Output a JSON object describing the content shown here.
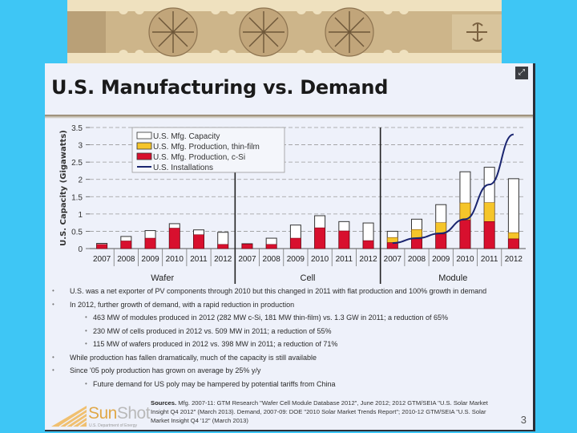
{
  "banner": {
    "image_alt": "carved wooden ornamental frieze with rosettes"
  },
  "slide": {
    "title": "U.S. Manufacturing vs. Demand",
    "expand_icon": "expand-icon",
    "bullets": [
      {
        "level": 1,
        "text": "U.S. was a net exporter of PV components through 2010 but this changed in 2011 with flat production and 100% growth in demand"
      },
      {
        "level": 1,
        "text": "In 2012, further growth of demand, with a rapid reduction in production"
      },
      {
        "level": 2,
        "text": "463 MW of modules produced in 2012 (282 MW c-Si, 181 MW thin-film) vs. 1.3 GW in 2011; a reduction of 65%"
      },
      {
        "level": 2,
        "text": "230 MW of cells produced in 2012 vs. 509 MW in 2011; a reduction of 55%"
      },
      {
        "level": 2,
        "text": "115 MW of wafers produced in 2012 vs. 398 MW in 2011; a reduction of 71%"
      },
      {
        "level": 1,
        "text": "While production has fallen dramatically, much of the capacity is still available"
      },
      {
        "level": 1,
        "text": "Since '05 poly production has grown on average by 25% y/y"
      },
      {
        "level": 2,
        "text": "Future demand for US poly may be hampered by potential tariffs from China"
      }
    ],
    "sources_label": "Sources.",
    "sources_text": " Mfg. 2007-11: GTM Research \"Wafer Cell Module Database 2012\", June 2012; 2012 GTM/SEIA \"U.S. Solar Market Insight Q4 2012\" (March 2013). Demand, 2007-09: DOE \"2010 Solar Market Trends Report\"; 2010-12 GTM/SEIA \"U.S. Solar Market Insight Q4 '12\" (March 2013)",
    "logo": {
      "sun": "Sun",
      "shot": "Shot",
      "sub": "U.S. Department of Energy"
    },
    "page_number": "3"
  },
  "chart_data": {
    "type": "bar",
    "title": "",
    "xlabel": "",
    "ylabel": "U.S. Capacity (Gigawatts)",
    "ylim": [
      0,
      3.5
    ],
    "yticks": [
      "0",
      "0.5",
      "1",
      "1.5",
      "2",
      "2.5",
      "3",
      "3.5"
    ],
    "grid": true,
    "legend_position": "top-left",
    "legend": [
      {
        "key": "capacity",
        "label": "U.S. Mfg. Capacity",
        "color": "#ffffff"
      },
      {
        "key": "thin_film",
        "label": "U.S. Mfg. Production, thin-film",
        "color": "#f5c52a"
      },
      {
        "key": "csi",
        "label": "U.S. Mfg. Production, c-Si",
        "color": "#d8102e"
      },
      {
        "key": "installs",
        "label": "U.S. Installations",
        "color": "#1a2570"
      }
    ],
    "groups": [
      {
        "name": "Wafer",
        "categories": [
          "2007",
          "2008",
          "2009",
          "2010",
          "2011",
          "2012"
        ],
        "csi": [
          0.12,
          0.22,
          0.3,
          0.59,
          0.4,
          0.12
        ],
        "thin_film": [
          0,
          0,
          0,
          0,
          0,
          0
        ],
        "capacity": [
          0.15,
          0.35,
          0.52,
          0.72,
          0.54,
          0.47
        ]
      },
      {
        "name": "Cell",
        "categories": [
          "2007",
          "2008",
          "2009",
          "2010",
          "2011",
          "2012"
        ],
        "csi": [
          0.13,
          0.12,
          0.3,
          0.6,
          0.51,
          0.23
        ],
        "thin_film": [
          0,
          0,
          0,
          0,
          0,
          0
        ],
        "capacity": [
          0.14,
          0.3,
          0.68,
          0.95,
          0.78,
          0.74
        ]
      },
      {
        "name": "Module",
        "categories": [
          "2007",
          "2008",
          "2009",
          "2010",
          "2011",
          "2012"
        ],
        "csi": [
          0.17,
          0.28,
          0.42,
          0.82,
          0.78,
          0.28
        ],
        "thin_film": [
          0.15,
          0.27,
          0.33,
          0.5,
          0.55,
          0.18
        ],
        "capacity": [
          0.5,
          0.85,
          1.27,
          2.22,
          2.35,
          2.02
        ]
      }
    ],
    "installations": {
      "group": "Module",
      "categories": [
        "2007",
        "2008",
        "2009",
        "2010",
        "2011",
        "2012"
      ],
      "values": [
        0.16,
        0.3,
        0.44,
        0.85,
        1.85,
        3.3
      ]
    }
  }
}
